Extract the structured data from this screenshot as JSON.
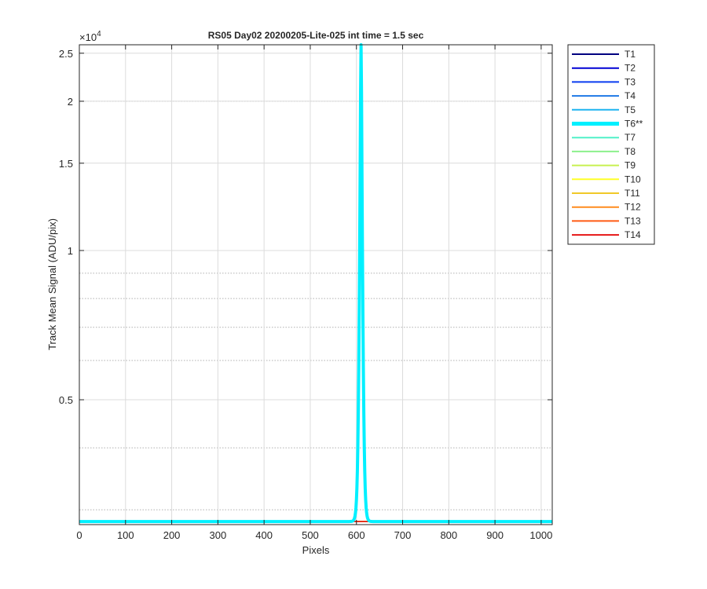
{
  "chart_data": {
    "type": "line",
    "title": "RS05 Day02 20200205-Lite-025 int time = 1.5 sec",
    "xlabel": "Pixels",
    "ylabel": "Track Mean Signal (ADU/pix)",
    "y_exponent_label": "×10",
    "y_exponent_power": "4",
    "xlim": [
      0,
      1024
    ],
    "ylim": [
      2800,
      26000
    ],
    "yscale": "log",
    "grid": true,
    "legend_position": "outside-right",
    "x_ticks": [
      0,
      100,
      200,
      300,
      400,
      500,
      600,
      700,
      800,
      900,
      1000
    ],
    "x_tick_labels": [
      "0",
      "100",
      "200",
      "300",
      "400",
      "500",
      "600",
      "700",
      "800",
      "900",
      "1000"
    ],
    "y_ticks": [
      5000,
      10000,
      15000,
      20000,
      25000
    ],
    "y_tick_labels": [
      "0.5",
      "1",
      "1.5",
      "2",
      "2.5"
    ],
    "y_minor_ticks": [
      3000,
      4000,
      6000,
      7000,
      8000,
      9000,
      20000
    ],
    "series": [
      {
        "name": "T1",
        "color": "#00007f",
        "width": 1.5
      },
      {
        "name": "T2",
        "color": "#0000d4",
        "width": 1.5
      },
      {
        "name": "T3",
        "color": "#0a3cf0",
        "width": 1.5
      },
      {
        "name": "T4",
        "color": "#1e78e6",
        "width": 1.5
      },
      {
        "name": "T5",
        "color": "#1eb4f0",
        "width": 1.5
      },
      {
        "name": "T6**",
        "color": "#00f0ff",
        "width": 4,
        "highlighted": true
      },
      {
        "name": "T7",
        "color": "#50f0c8",
        "width": 1.5
      },
      {
        "name": "T8",
        "color": "#8cf08c",
        "width": 1.5
      },
      {
        "name": "T9",
        "color": "#c8f050",
        "width": 1.5
      },
      {
        "name": "T10",
        "color": "#ffff28",
        "width": 1.5
      },
      {
        "name": "T11",
        "color": "#f0c828",
        "width": 1.5
      },
      {
        "name": "T12",
        "color": "#ff8c1e",
        "width": 1.5
      },
      {
        "name": "T13",
        "color": "#ff5a14",
        "width": 1.5
      },
      {
        "name": "T14",
        "color": "#e61414",
        "width": 1.5
      }
    ],
    "baseline_value": 2840,
    "peak": {
      "series": "T6**",
      "x": 610,
      "y": 26000
    }
  }
}
